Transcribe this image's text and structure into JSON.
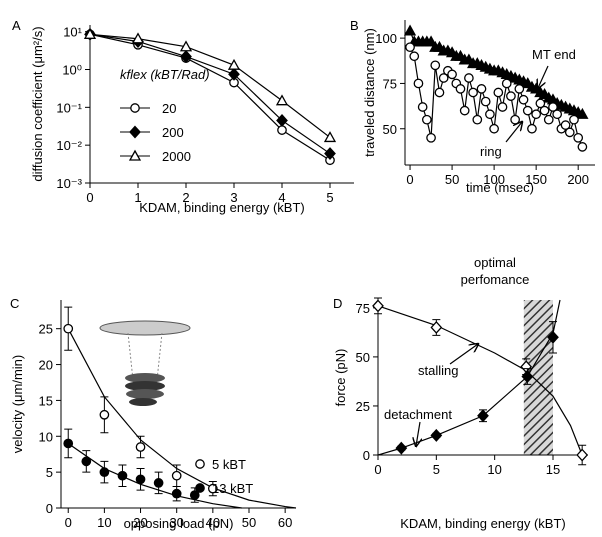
{
  "chart_data": [
    {
      "type": "line",
      "label": "A",
      "log_y": true,
      "xlabel": "KDAM, binding energy (kBT)",
      "ylabel": "diffusion coefficient (μm²/s)",
      "legend_title": "kflex (kBT/Rad)",
      "x": [
        0,
        1,
        2,
        3,
        4,
        5
      ],
      "xlim": [
        0,
        5.5
      ],
      "xticks": [
        0,
        1,
        2,
        3,
        4,
        5
      ],
      "ylim": [
        0.001,
        15
      ],
      "yticks": [
        {
          "value": 0.001,
          "label": "10⁻³"
        },
        {
          "value": 0.01,
          "label": "10⁻²"
        },
        {
          "value": 0.1,
          "label": "10⁻¹"
        },
        {
          "value": 1,
          "label": "10⁰"
        },
        {
          "value": 10,
          "label": "10¹"
        }
      ],
      "series": [
        {
          "name": "20",
          "marker": "circle",
          "fill": "#ffffff",
          "color": "#000000",
          "values": [
            8.5,
            4.5,
            2.0,
            0.45,
            0.025,
            0.004
          ]
        },
        {
          "name": "200",
          "marker": "diamond",
          "fill": "#000000",
          "color": "#000000",
          "values": [
            8.5,
            5.5,
            2.2,
            0.75,
            0.045,
            0.006
          ]
        },
        {
          "name": "2000",
          "marker": "triangle",
          "fill": "#ffffff",
          "color": "#000000",
          "values": [
            8.5,
            6.5,
            4.0,
            1.3,
            0.15,
            0.016
          ]
        }
      ]
    },
    {
      "type": "line",
      "label": "B",
      "xlabel": "time (msec)",
      "ylabel": "traveled distance (nm)",
      "x": [
        0,
        5,
        10,
        15,
        20,
        25,
        30,
        35,
        40,
        45,
        50,
        55,
        60,
        65,
        70,
        75,
        80,
        85,
        90,
        95,
        100,
        105,
        110,
        115,
        120,
        125,
        130,
        135,
        140,
        145,
        150,
        155,
        160,
        165,
        170,
        175,
        180,
        185,
        190,
        195,
        200,
        205
      ],
      "xlim": [
        -6,
        220
      ],
      "xticks": [
        0,
        50,
        100,
        150,
        200
      ],
      "ylim": [
        30,
        110
      ],
      "yticks": [
        50,
        75,
        100
      ],
      "annotations": [
        "MT end",
        "ring"
      ],
      "series": [
        {
          "marker": "triangle",
          "fill": "#000000",
          "color": "#000000",
          "values": [
            104,
            98,
            98,
            98,
            98,
            98,
            95,
            95,
            93,
            93,
            92,
            90,
            90,
            88,
            88,
            86,
            86,
            85,
            84,
            83,
            82,
            82,
            81,
            80,
            79,
            78,
            77,
            76,
            75,
            73,
            72,
            70,
            69,
            67,
            66,
            64,
            63,
            62,
            61,
            60,
            59,
            58
          ]
        },
        {
          "marker": "circle",
          "fill": "#ffffff",
          "color": "#000000",
          "values": [
            95,
            90,
            75,
            62,
            55,
            45,
            85,
            70,
            78,
            82,
            80,
            75,
            72,
            60,
            78,
            70,
            55,
            72,
            65,
            58,
            50,
            70,
            62,
            75,
            68,
            55,
            72,
            66,
            60,
            50,
            58,
            64,
            60,
            55,
            62,
            58,
            50,
            52,
            48,
            55,
            45,
            40
          ]
        }
      ]
    },
    {
      "type": "scatter",
      "label": "C",
      "xlabel": "opposing load (pN)",
      "ylabel": "velocity (μm/min)",
      "xlim": [
        -2,
        63
      ],
      "xticks": [
        0,
        10,
        20,
        30,
        40,
        50,
        60
      ],
      "ylim": [
        0,
        29
      ],
      "yticks": [
        0,
        5,
        10,
        15,
        20,
        25
      ],
      "series": [
        {
          "name": "5 kBT",
          "marker": "circle",
          "fill": "#ffffff",
          "color": "#000000",
          "x": [
            0,
            10,
            20,
            30,
            40
          ],
          "values": [
            25,
            13,
            8.5,
            4.5,
            2.7
          ],
          "errors": [
            3,
            2.5,
            1.5,
            1.5,
            1
          ]
        },
        {
          "name": "13 kBT",
          "marker": "circle",
          "fill": "#000000",
          "color": "#000000",
          "x": [
            0,
            5,
            10,
            15,
            20,
            25,
            30,
            35
          ],
          "values": [
            9,
            6.5,
            5,
            4.5,
            4,
            3.5,
            2,
            1.8
          ],
          "errors": [
            2,
            1.5,
            1.5,
            1.5,
            1.5,
            1.5,
            1,
            1
          ]
        }
      ],
      "fits": [
        {
          "x": [
            0,
            10,
            20,
            30,
            40,
            50,
            60,
            63
          ],
          "values": [
            25,
            15.5,
            9.5,
            5.5,
            2.8,
            1.1,
            0.2,
            0
          ]
        },
        {
          "x": [
            0,
            10,
            20,
            30,
            40,
            48
          ],
          "values": [
            9,
            5.5,
            3.3,
            1.7,
            0.6,
            0
          ]
        }
      ]
    },
    {
      "type": "scatter",
      "label": "D",
      "xlabel": "KDAM, binding energy (kBT)",
      "ylabel": "force (pN)",
      "xlim": [
        0,
        18
      ],
      "xticks": [
        0,
        5,
        10,
        15
      ],
      "ylim": [
        0,
        79
      ],
      "yticks": [
        0,
        25,
        50,
        75
      ],
      "highlight": [
        12.5,
        15
      ],
      "annotations": [
        "optimal perfomance",
        "stalling",
        "detachment"
      ],
      "series": [
        {
          "marker": "diamond",
          "fill": "#ffffff",
          "color": "#000000",
          "x": [
            0,
            5,
            12.7,
            17.5
          ],
          "values": [
            76,
            65,
            45,
            0
          ],
          "errors": [
            4,
            4,
            4,
            5
          ]
        },
        {
          "marker": "diamond",
          "fill": "#000000",
          "color": "#000000",
          "x": [
            2,
            5,
            9,
            12.8,
            15
          ],
          "values": [
            3.5,
            10,
            20,
            40,
            60
          ],
          "errors": [
            1,
            1,
            3,
            4,
            8
          ]
        }
      ],
      "fits": [
        {
          "x": [
            0,
            5,
            10,
            12.7,
            15,
            16.5,
            17.5
          ],
          "values": [
            76,
            66,
            52,
            43,
            30,
            15,
            0
          ]
        },
        {
          "x": [
            0,
            2,
            5,
            9,
            12.8,
            14,
            15,
            15.6
          ],
          "values": [
            0,
            3.5,
            10,
            20,
            40,
            52,
            62,
            79
          ]
        }
      ]
    }
  ]
}
